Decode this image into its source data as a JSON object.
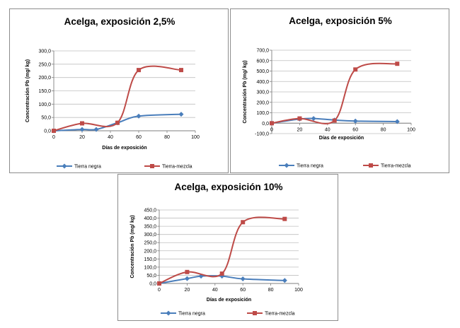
{
  "colors": {
    "tierra_negra": "#4a7ebb",
    "tierra_mezcla": "#be4b48",
    "grid": "#bfbfbf",
    "axis": "#7f7f7f"
  },
  "chart_data": [
    {
      "type": "line",
      "title": "Acelga, exposición 2,5%",
      "xlabel": "Días de exposición",
      "ylabel": "Concentración Pb (mg/ kg)",
      "xlim": [
        0,
        100
      ],
      "ylim": [
        0,
        300
      ],
      "yticks": [
        "0,0",
        "50,0",
        "100,0",
        "150,0",
        "200,0",
        "250,0",
        "300,0"
      ],
      "xticks": [
        "0",
        "20",
        "40",
        "60",
        "80",
        "100"
      ],
      "legend": "bottom",
      "series": [
        {
          "name": "Tierra negra",
          "marker": "diamond",
          "x": [
            0,
            20,
            30,
            45,
            60,
            90
          ],
          "y": [
            0,
            5,
            5,
            30,
            55,
            62
          ]
        },
        {
          "name": "Tierra-mezcla",
          "marker": "square",
          "x": [
            0,
            20,
            45,
            60,
            90
          ],
          "y": [
            0,
            28,
            30,
            228,
            228
          ]
        }
      ]
    },
    {
      "type": "line",
      "title": "Acelga, exposición 5%",
      "xlabel": "Días de exposición",
      "ylabel": "Concentración Pb (mg/ kg)",
      "xlim": [
        0,
        100
      ],
      "ylim": [
        -100,
        700
      ],
      "yticks": [
        "-100,0",
        "0,0",
        "100,0",
        "200,0",
        "300,0",
        "400,0",
        "500,0",
        "600,0",
        "700,0"
      ],
      "xticks": [
        "0",
        "20",
        "40",
        "60",
        "80",
        "100"
      ],
      "legend": "bottom",
      "series": [
        {
          "name": "Tierra negra",
          "marker": "diamond",
          "x": [
            0,
            20,
            30,
            45,
            60,
            90
          ],
          "y": [
            0,
            40,
            45,
            30,
            20,
            15
          ]
        },
        {
          "name": "Tierra-mezcla",
          "marker": "square",
          "x": [
            0,
            20,
            45,
            60,
            90
          ],
          "y": [
            0,
            45,
            25,
            515,
            570
          ]
        }
      ]
    },
    {
      "type": "line",
      "title": "Acelga, exposición 10%",
      "xlabel": "Días de exposición",
      "ylabel": "Concentración Pb (mg/ kg)",
      "xlim": [
        0,
        100
      ],
      "ylim": [
        0,
        450
      ],
      "yticks": [
        "0,0",
        "50,0",
        "100,0",
        "150,0",
        "200,0",
        "250,0",
        "300,0",
        "350,0",
        "400,0",
        "450,0"
      ],
      "xticks": [
        "0",
        "20",
        "40",
        "60",
        "80",
        "100"
      ],
      "legend": "bottom",
      "series": [
        {
          "name": "Tierra negra",
          "marker": "diamond",
          "x": [
            0,
            20,
            30,
            45,
            60,
            90
          ],
          "y": [
            0,
            30,
            45,
            45,
            28,
            18
          ]
        },
        {
          "name": "Tierra-mezcla",
          "marker": "square",
          "x": [
            0,
            20,
            45,
            60,
            90
          ],
          "y": [
            0,
            70,
            60,
            375,
            395
          ]
        }
      ]
    }
  ]
}
